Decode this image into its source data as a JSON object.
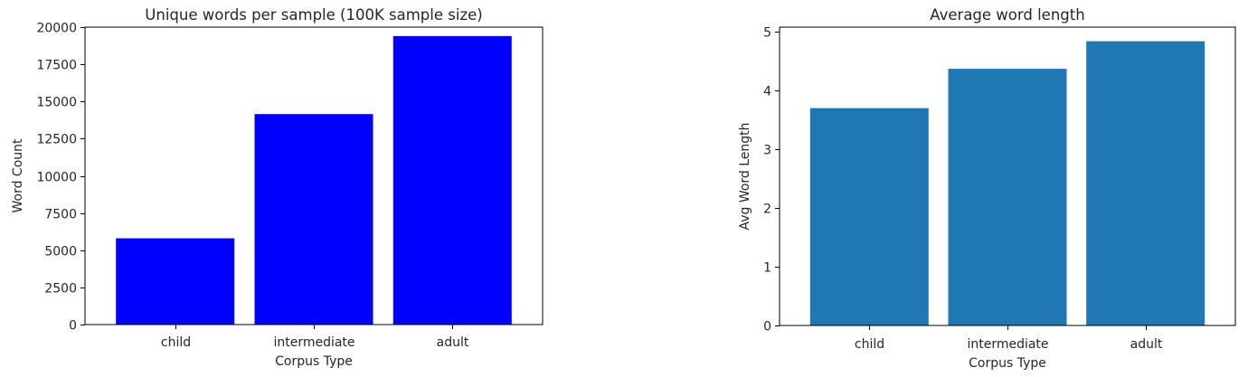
{
  "chart_data": [
    {
      "type": "bar",
      "title": "Unique words per sample (100K sample size)",
      "xlabel": "Corpus Type",
      "ylabel": "Word Count",
      "categories": [
        "child",
        "intermediate",
        "adult"
      ],
      "values": [
        5800,
        14150,
        19400
      ],
      "ylim": [
        0,
        20000
      ],
      "yticks": [
        0,
        2500,
        5000,
        7500,
        10000,
        12500,
        15000,
        17500,
        20000
      ],
      "bar_color": "#0000ff",
      "grid": false,
      "legend": "none"
    },
    {
      "type": "bar",
      "title": "Average word length",
      "xlabel": "Corpus Type",
      "ylabel": "Avg Word Length",
      "categories": [
        "child",
        "intermediate",
        "adult"
      ],
      "values": [
        3.7,
        4.37,
        4.84
      ],
      "ylim": [
        0,
        5.08
      ],
      "yticks": [
        0,
        1,
        2,
        3,
        4,
        5
      ],
      "bar_color": "#1f77b4",
      "grid": false,
      "legend": "none"
    }
  ]
}
